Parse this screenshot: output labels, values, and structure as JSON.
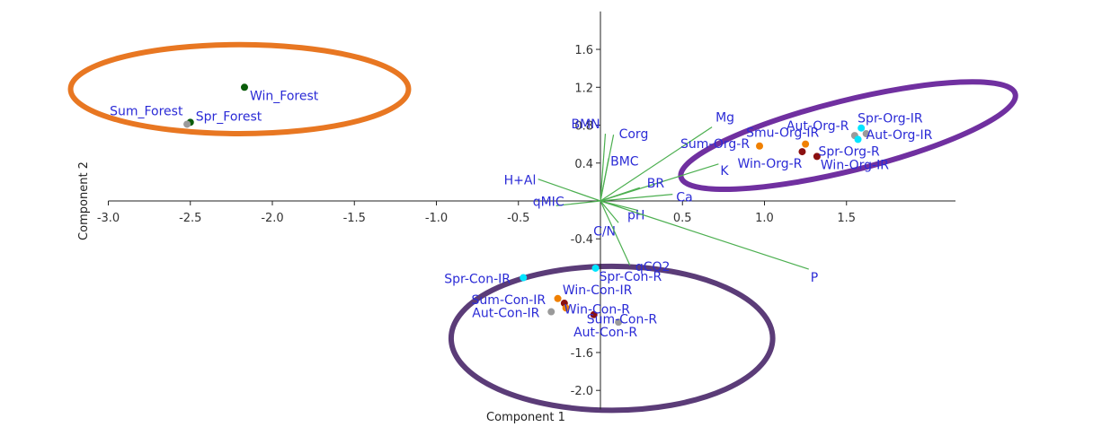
{
  "chart_data": {
    "type": "scatter",
    "title": "",
    "xlabel": "Component 1",
    "ylabel": "Component 2",
    "xlim": [
      -3.0,
      2.0
    ],
    "ylim": [
      -2.2,
      2.0
    ],
    "x_ticks": [
      "-3.0",
      "-2.5",
      "-2.0",
      "-1.5",
      "-1.0",
      "-0.5",
      "0.5",
      "1.0",
      "1.5"
    ],
    "x_tick_values": [
      -3.0,
      -2.5,
      -2.0,
      -1.5,
      -1.0,
      -0.5,
      0.5,
      1.0,
      1.5
    ],
    "y_ticks": [
      "1.6",
      "1.2",
      "0.8",
      "0.4",
      "-0.4",
      "-1.6",
      "-2.0"
    ],
    "y_tick_values": [
      1.6,
      1.2,
      0.8,
      0.4,
      -0.4,
      -1.6,
      -2.0
    ],
    "grid": false,
    "points": [
      {
        "label": "Win_Forest",
        "x": -2.17,
        "y": 1.2,
        "color": "#0a5c0a"
      },
      {
        "label": "Spr_Forest",
        "x": -2.5,
        "y": 0.83,
        "color": "#0a5c0a"
      },
      {
        "label": "Sum_Forest",
        "x": -2.52,
        "y": 0.81,
        "color": "#9a9a9a"
      },
      {
        "label": "Spr-Org-IR",
        "x": 1.59,
        "y": 0.77,
        "color": "#00e5ff"
      },
      {
        "label": "Aut-Org-R",
        "x": 1.55,
        "y": 0.69,
        "color": "#9a9a9a"
      },
      {
        "label": "Aut-Org-IR",
        "x": 1.62,
        "y": 0.71,
        "color": "#9a9a9a"
      },
      {
        "label": "Smu-Org-IR",
        "x": 1.25,
        "y": 0.6,
        "color": "#f08000"
      },
      {
        "label": "Sum-Org-R",
        "x": 0.97,
        "y": 0.58,
        "color": "#f08000"
      },
      {
        "label": "Spr-Org-R",
        "x": 1.57,
        "y": 0.65,
        "color": "#00e5ff"
      },
      {
        "label": "Win-Org-R",
        "x": 1.23,
        "y": 0.52,
        "color": "#8b1010"
      },
      {
        "label": "Win-Org-IR",
        "x": 1.32,
        "y": 0.47,
        "color": "#8b1010"
      },
      {
        "label": "Spr-Con-IR",
        "x": -0.47,
        "y": -0.81,
        "color": "#00e5ff"
      },
      {
        "label": "Spr-Con-R",
        "x": -0.03,
        "y": -0.71,
        "color": "#00e5ff"
      },
      {
        "label": "Sum-Con-IR",
        "x": -0.26,
        "y": -1.03,
        "color": "#f08000"
      },
      {
        "label": "Win-Con-IR",
        "x": -0.22,
        "y": -1.08,
        "color": "#8b1010"
      },
      {
        "label": "Win-Con-R",
        "x": -0.21,
        "y": -1.13,
        "color": "#f08000"
      },
      {
        "label": "Aut-Con-IR",
        "x": -0.3,
        "y": -1.17,
        "color": "#9a9a9a"
      },
      {
        "label": "Sum-Con-R",
        "x": -0.04,
        "y": -1.2,
        "color": "#8b1010"
      },
      {
        "label": "Aut-Con-R",
        "x": 0.11,
        "y": -1.28,
        "color": "#9a9a9a"
      }
    ],
    "vectors": [
      {
        "label": "Mg",
        "x": 0.68,
        "y": 0.78
      },
      {
        "label": "K",
        "x": 0.72,
        "y": 0.39
      },
      {
        "label": "BMN",
        "x": 0.03,
        "y": 0.71
      },
      {
        "label": "Corg",
        "x": 0.08,
        "y": 0.7
      },
      {
        "label": "BMC",
        "x": 0.05,
        "y": 0.45
      },
      {
        "label": "H+Al",
        "x": -0.38,
        "y": 0.23
      },
      {
        "label": "qMIC",
        "x": -0.27,
        "y": -0.05
      },
      {
        "label": "BR",
        "x": 0.24,
        "y": 0.14
      },
      {
        "label": "Ca",
        "x": 0.44,
        "y": 0.07
      },
      {
        "label": "C/N",
        "x": 0.11,
        "y": -0.23
      },
      {
        "label": "pH",
        "x": 0.23,
        "y": -0.1
      },
      {
        "label": "P",
        "x": 1.27,
        "y": -0.72
      },
      {
        "label": "qCO2",
        "x": 0.18,
        "y": -0.68
      }
    ],
    "annotations": [
      {
        "shape": "ellipse",
        "color": "#e87722",
        "cx": -2.2,
        "cy": 1.18,
        "rx": 1.03,
        "ry": 0.47
      },
      {
        "shape": "ellipse",
        "color": "#7030a0",
        "cx": 1.51,
        "cy": 0.69,
        "rx": 1.05,
        "ry": 0.37,
        "rotation": -14
      },
      {
        "shape": "ellipse",
        "color": "#5b3c78",
        "cx": 0.07,
        "cy": -1.45,
        "rx": 0.98,
        "ry": 0.76
      }
    ]
  }
}
